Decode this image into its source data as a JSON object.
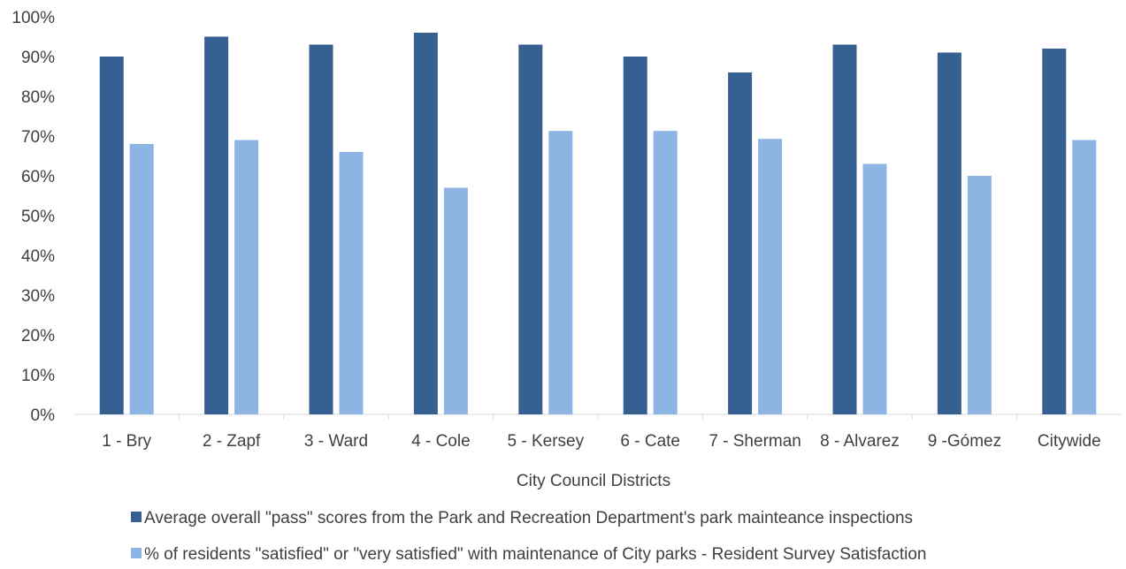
{
  "chart_data": {
    "type": "bar",
    "title": "",
    "xlabel": "City Council Districts",
    "ylabel": "",
    "ylim": [
      0,
      100
    ],
    "yticks": [
      0,
      10,
      20,
      30,
      40,
      50,
      60,
      70,
      80,
      90,
      100
    ],
    "ytick_suffix": "%",
    "grid": false,
    "legend_position": "bottom",
    "categories": [
      "1 - Bry",
      "2 - Zapf",
      "3 - Ward",
      "4 - Cole",
      "5 - Kersey",
      "6 - Cate",
      "7 - Sherman",
      "8 - Alvarez",
      "9 -Gómez",
      "Citywide"
    ],
    "series": [
      {
        "name": "Average overall \"pass\" scores from the Park and Recreation Department's park mainteance inspections",
        "color": "#376092",
        "values": [
          90,
          95,
          93,
          96,
          93,
          90,
          86,
          93,
          91,
          92
        ]
      },
      {
        "name": "% of residents \"satisfied\" or \"very satisfied\" with maintenance of City parks - Resident Survey Satisfaction",
        "color": "#8EB4E3",
        "values": [
          68,
          69,
          66,
          57,
          71.3,
          71.3,
          69.3,
          63,
          60,
          69
        ]
      }
    ]
  }
}
